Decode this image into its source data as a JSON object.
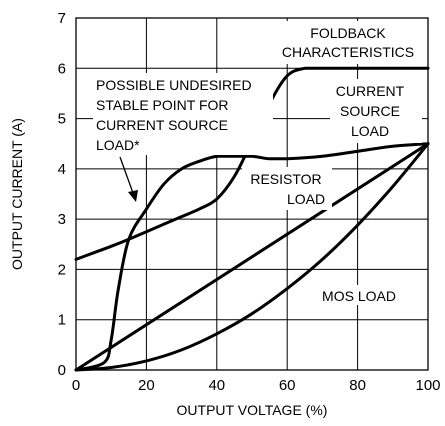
{
  "chart_data": {
    "type": "line",
    "xlabel": "OUTPUT VOLTAGE (%)",
    "ylabel": "OUTPUT CURRENT (A)",
    "xlim": [
      0,
      100
    ],
    "ylim": [
      0,
      7
    ],
    "xticks": [
      0,
      20,
      40,
      60,
      80,
      100
    ],
    "yticks": [
      0,
      1,
      2,
      3,
      4,
      5,
      6,
      7
    ],
    "grid": true,
    "series": [
      {
        "x": [
          0,
          5,
          10,
          15,
          20,
          25,
          30,
          35,
          40,
          45,
          50,
          55,
          60,
          65,
          70,
          80,
          90,
          100
        ],
        "y": [
          2.2,
          2.33,
          2.46,
          2.6,
          2.75,
          2.9,
          3.05,
          3.2,
          3.4,
          3.85,
          4.55,
          5.3,
          5.85,
          6.0,
          6.0,
          6.0,
          6.0,
          6.0
        ]
      },
      {
        "x": [
          0,
          8,
          10,
          12,
          15,
          20,
          25,
          30,
          35,
          40,
          45,
          50,
          55,
          60,
          70,
          80,
          90,
          100
        ],
        "y": [
          0,
          0.15,
          0.6,
          1.6,
          2.6,
          3.2,
          3.7,
          4.0,
          4.15,
          4.25,
          4.25,
          4.25,
          4.2,
          4.2,
          4.25,
          4.35,
          4.45,
          4.5
        ]
      },
      {
        "x": [
          0,
          100
        ],
        "y": [
          0,
          4.5
        ]
      },
      {
        "x": [
          0,
          10,
          20,
          30,
          40,
          50,
          60,
          70,
          80,
          90,
          100
        ],
        "y": [
          0,
          0.05,
          0.18,
          0.4,
          0.72,
          1.12,
          1.62,
          2.2,
          2.88,
          3.65,
          4.5
        ]
      }
    ],
    "annotations": [
      {
        "lines": [
          "FOLDBACK",
          "CHARACTERISTICS"
        ]
      },
      {
        "lines": [
          "POSSIBLE UNDESIRED",
          "STABLE POINT FOR",
          "CURRENT SOURCE",
          "LOAD*"
        ]
      },
      {
        "lines": [
          "CURRENT",
          "SOURCE",
          "LOAD"
        ]
      },
      {
        "lines": [
          "RESISTOR",
          "LOAD"
        ]
      },
      {
        "lines": [
          "MOS LOAD"
        ]
      }
    ]
  }
}
